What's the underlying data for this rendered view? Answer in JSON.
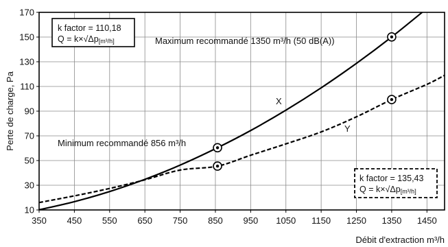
{
  "chart_data": {
    "type": "line",
    "xlabel": "Débit d'extraction m³/h",
    "ylabel": "Perte de charge, Pa",
    "xlim": [
      350,
      1500
    ],
    "ylim": [
      10,
      170
    ],
    "x_ticks": [
      "350",
      "450",
      "550",
      "650",
      "750",
      "850",
      "950",
      "1050",
      "1150",
      "1250",
      "1350",
      "1450"
    ],
    "y_ticks": [
      "10",
      "30",
      "50",
      "70",
      "90",
      "110",
      "130",
      "150",
      "170"
    ],
    "grid": true,
    "series": [
      {
        "name": "X",
        "style": "solid",
        "k_factor": 110.18,
        "x": [
          350,
          450,
          550,
          650,
          750,
          856,
          950,
          1050,
          1150,
          1250,
          1350,
          1450
        ],
        "y": [
          10.1,
          16.7,
          24.9,
          34.8,
          46.3,
          60.4,
          74.3,
          90.8,
          108.9,
          128.7,
          150.1,
          173.2
        ],
        "markers": [
          {
            "x": 856,
            "y": 60.4
          },
          {
            "x": 1350,
            "y": 150.1
          }
        ]
      },
      {
        "name": "Y",
        "style": "dashed",
        "k_factor": 135.43,
        "x": [
          350,
          450,
          550,
          650,
          750,
          856,
          950,
          1050,
          1150,
          1250,
          1350,
          1450,
          1500
        ],
        "y": [
          16,
          21.4,
          27.4,
          34.4,
          42.3,
          45.5,
          54.3,
          63.5,
          73.2,
          85.4,
          99.4,
          111.7,
          119
        ],
        "markers": [
          {
            "x": 856,
            "y": 45.5
          },
          {
            "x": 1350,
            "y": 99.4
          }
        ]
      }
    ],
    "annotations": {
      "max_label": "Maximum recommandé 1350 m³/h (50 dB(A))",
      "min_label": "Minimum recommandé 856 m³/h",
      "series_x_label": "X",
      "series_y_label": "Y"
    },
    "boxes": {
      "solid": {
        "line1": "k factor = 110,18",
        "formula": "Q = k×√Δp",
        "subscript": "[m³/h]"
      },
      "dashed": {
        "line1": "k factor = 135,43",
        "formula": "Q = k×√Δp",
        "subscript": "[m³/h]"
      }
    }
  }
}
